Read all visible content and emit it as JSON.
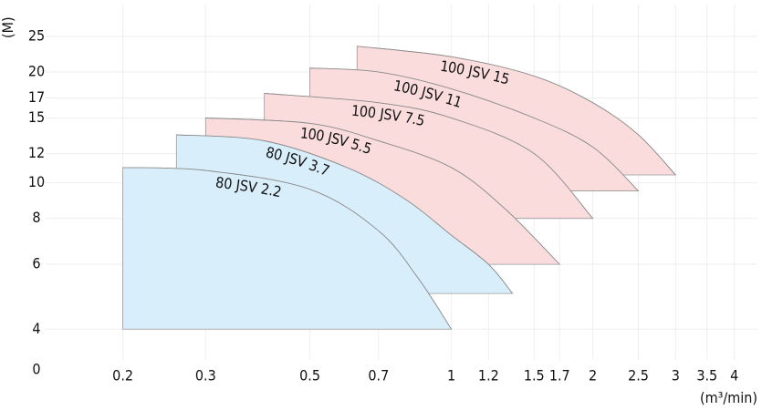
{
  "chart_data": {
    "type": "region",
    "y_label": "(M)",
    "x_label": "(m³/min)",
    "origin_label": "0",
    "xscale": "log",
    "yscale": "log",
    "grid": true,
    "xlim": [
      0.137,
      4.48
    ],
    "ylim": [
      3.3,
      30.5
    ],
    "xticks": [
      0.2,
      0.3,
      0.5,
      0.7,
      1,
      1.2,
      1.5,
      1.7,
      2,
      2.5,
      3,
      3.5,
      4
    ],
    "yticks": [
      4,
      6,
      8,
      10,
      12,
      15,
      17,
      20,
      25
    ],
    "series": [
      {
        "name": "100 JSV 15",
        "color": "#fbdcdc",
        "min_head": 10.5,
        "x": [
          0.63,
          1,
          1.5,
          2,
          2.5,
          3
        ],
        "values": [
          23.5,
          22,
          19.5,
          16.5,
          13.5,
          10.5
        ]
      },
      {
        "name": "100 JSV 11",
        "color": "#fbdcdc",
        "min_head": 9.5,
        "x": [
          0.5,
          0.7,
          1,
          1.5,
          2,
          2.5
        ],
        "values": [
          20.5,
          20,
          18,
          15,
          12.5,
          9.5
        ]
      },
      {
        "name": "100 JSV 7.5",
        "color": "#fbdcdc",
        "min_head": 8,
        "x": [
          0.4,
          0.7,
          1,
          1.5,
          2
        ],
        "values": [
          17.5,
          16.5,
          15,
          12,
          8
        ]
      },
      {
        "name": "100 JSV 5.5",
        "color": "#fbdcdc",
        "min_head": 6,
        "x": [
          0.3,
          0.5,
          0.7,
          1,
          1.3,
          1.7
        ],
        "values": [
          15,
          14.5,
          13,
          11,
          8.5,
          6
        ]
      },
      {
        "name": "80 JSV 3.7",
        "color": "#d9eefb",
        "min_head": 5,
        "x": [
          0.26,
          0.4,
          0.6,
          0.8,
          1,
          1.2,
          1.35
        ],
        "values": [
          13.5,
          13,
          11,
          9,
          7.2,
          6,
          5
        ]
      },
      {
        "name": "80 JSV 2.2",
        "color": "#d9eefb",
        "min_head": 4,
        "x": [
          0.2,
          0.3,
          0.5,
          0.7,
          0.85,
          1
        ],
        "values": [
          11,
          10.8,
          9.6,
          7.4,
          5.5,
          4
        ]
      }
    ]
  }
}
